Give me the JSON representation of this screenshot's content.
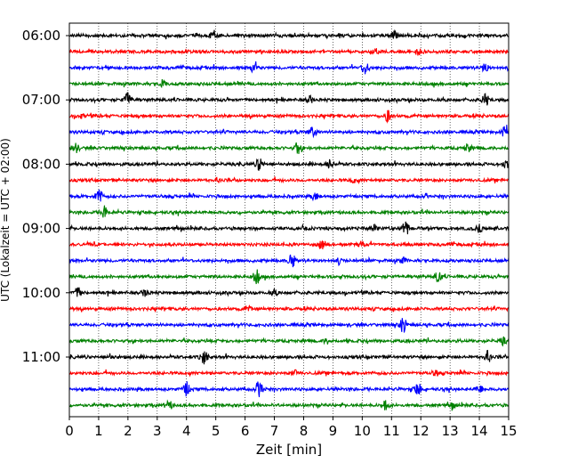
{
  "chart_data": {
    "type": "line",
    "title": "",
    "xlabel": "Zeit  [min]",
    "ylabel": "UTC (Lokalzeit = UTC + 02:00)",
    "xlim": [
      0,
      15
    ],
    "x_ticks": [
      0,
      1,
      2,
      3,
      4,
      5,
      6,
      7,
      8,
      9,
      10,
      11,
      12,
      13,
      14,
      15
    ],
    "x_tick_labels": [
      "0",
      "1",
      "2",
      "3",
      "4",
      "5",
      "6",
      "7",
      "8",
      "9",
      "10",
      "11",
      "12",
      "13",
      "14",
      "15"
    ],
    "y_tick_labels": [
      "06:00",
      "07:00",
      "08:00",
      "09:00",
      "10:00",
      "11:00"
    ],
    "grid": "vertical dotted",
    "trace_minutes": 15,
    "start_time": "06:00",
    "line_colors": [
      "#000000",
      "#ff0000",
      "#0000ff",
      "#008000"
    ],
    "series": [
      {
        "time": "06:00",
        "color": "#000000",
        "events": [
          [
            4.9,
            0.35
          ],
          [
            11.1,
            0.6
          ]
        ]
      },
      {
        "time": "06:15",
        "color": "#ff0000",
        "events": [
          [
            10.5,
            0.35
          ],
          [
            11.9,
            0.4
          ]
        ]
      },
      {
        "time": "06:30",
        "color": "#0000ff",
        "events": [
          [
            6.3,
            0.7
          ],
          [
            10.1,
            0.8
          ],
          [
            14.2,
            0.5
          ]
        ]
      },
      {
        "time": "06:45",
        "color": "#008000",
        "events": [
          [
            3.2,
            0.4
          ]
        ]
      },
      {
        "time": "07:00",
        "color": "#000000",
        "events": [
          [
            2.0,
            0.9
          ],
          [
            8.2,
            0.4
          ],
          [
            14.2,
            0.7
          ]
        ]
      },
      {
        "time": "07:15",
        "color": "#ff0000",
        "events": [
          [
            10.9,
            0.8
          ],
          [
            0.4,
            0.25
          ]
        ]
      },
      {
        "time": "07:30",
        "color": "#0000ff",
        "events": [
          [
            8.3,
            0.6
          ],
          [
            14.9,
            0.9
          ]
        ]
      },
      {
        "time": "07:45",
        "color": "#008000",
        "events": [
          [
            0.2,
            0.6
          ],
          [
            7.8,
            0.7
          ],
          [
            13.6,
            0.5
          ]
        ]
      },
      {
        "time": "08:00",
        "color": "#000000",
        "events": [
          [
            6.5,
            0.8
          ],
          [
            8.9,
            0.5
          ],
          [
            14.9,
            0.5
          ]
        ]
      },
      {
        "time": "08:15",
        "color": "#ff0000",
        "events": [
          [
            5.1,
            0.25
          ],
          [
            9.7,
            0.25
          ]
        ]
      },
      {
        "time": "08:30",
        "color": "#0000ff",
        "events": [
          [
            1.0,
            0.9
          ],
          [
            8.4,
            0.5
          ]
        ]
      },
      {
        "time": "08:45",
        "color": "#008000",
        "events": [
          [
            1.2,
            0.8
          ]
        ]
      },
      {
        "time": "09:00",
        "color": "#000000",
        "events": [
          [
            10.4,
            0.4
          ],
          [
            11.5,
            0.9
          ],
          [
            14.0,
            0.5
          ]
        ]
      },
      {
        "time": "09:15",
        "color": "#ff0000",
        "events": [
          [
            8.6,
            0.5
          ],
          [
            10.0,
            0.3
          ]
        ]
      },
      {
        "time": "09:30",
        "color": "#0000ff",
        "events": [
          [
            7.6,
            0.8
          ],
          [
            9.2,
            0.3
          ],
          [
            11.4,
            0.3
          ]
        ]
      },
      {
        "time": "09:45",
        "color": "#008000",
        "events": [
          [
            6.4,
            0.8
          ],
          [
            12.6,
            0.8
          ]
        ]
      },
      {
        "time": "10:00",
        "color": "#000000",
        "events": [
          [
            0.3,
            0.6
          ],
          [
            2.6,
            0.4
          ],
          [
            7.0,
            0.3
          ]
        ]
      },
      {
        "time": "10:15",
        "color": "#ff0000",
        "events": [
          [
            6.1,
            0.25
          ]
        ]
      },
      {
        "time": "10:30",
        "color": "#0000ff",
        "events": [
          [
            11.4,
            0.9
          ]
        ]
      },
      {
        "time": "10:45",
        "color": "#008000",
        "events": [
          [
            8.8,
            0.3
          ],
          [
            14.8,
            0.4
          ]
        ]
      },
      {
        "time": "11:00",
        "color": "#000000",
        "events": [
          [
            4.6,
            0.9
          ],
          [
            14.3,
            0.7
          ],
          [
            1.4,
            0.3
          ]
        ]
      },
      {
        "time": "11:15",
        "color": "#ff0000",
        "events": [
          [
            7.7,
            0.3
          ],
          [
            12.5,
            0.3
          ]
        ]
      },
      {
        "time": "11:30",
        "color": "#0000ff",
        "events": [
          [
            4.0,
            0.8
          ],
          [
            6.5,
            0.9
          ],
          [
            11.9,
            0.8
          ],
          [
            14.0,
            0.5
          ]
        ]
      },
      {
        "time": "11:45",
        "color": "#008000",
        "events": [
          [
            3.4,
            0.5
          ],
          [
            10.8,
            0.5
          ],
          [
            13.1,
            0.3
          ]
        ]
      }
    ]
  }
}
